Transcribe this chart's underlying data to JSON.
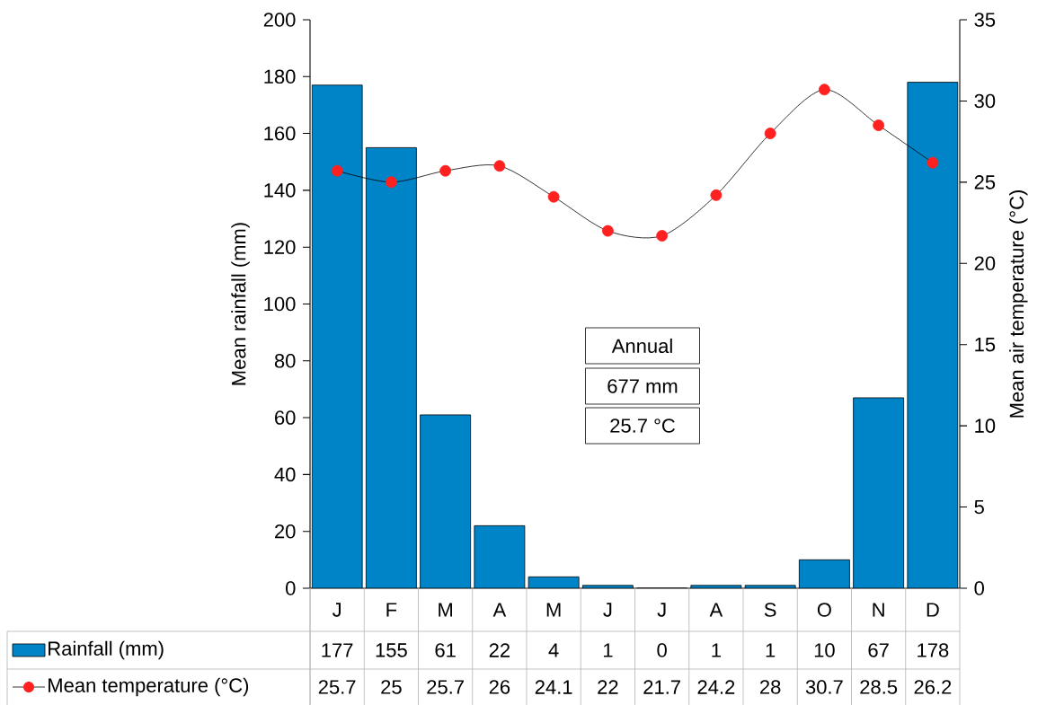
{
  "chart_data": {
    "type": "bar",
    "categories": [
      "J",
      "F",
      "M",
      "A",
      "M",
      "J",
      "J",
      "A",
      "S",
      "O",
      "N",
      "D"
    ],
    "series": [
      {
        "name": "Rainfall (mm)",
        "color": "#0084c8",
        "values": [
          177,
          155,
          61,
          22,
          4,
          1,
          0,
          1,
          1,
          10,
          67,
          178
        ]
      },
      {
        "name": "Mean temperature (°C)",
        "type": "line",
        "axis": "y2",
        "color": "#ff2020",
        "marker": "circle",
        "values": [
          25.7,
          25,
          25.7,
          26,
          24.1,
          22,
          21.7,
          24.2,
          28,
          30.7,
          28.5,
          26.2
        ]
      }
    ],
    "ylabel": "Mean rainfall (mm)",
    "y2label": "Mean air temperature (°C)",
    "ylim": [
      0,
      200
    ],
    "yticks": [
      0,
      20,
      40,
      60,
      80,
      100,
      120,
      140,
      160,
      180,
      200
    ],
    "y2lim": [
      0,
      35
    ],
    "y2ticks": [
      0,
      5,
      10,
      15,
      20,
      25,
      30,
      35
    ],
    "annotations": [
      "Annual",
      "677 mm",
      "25.7 °C"
    ],
    "data_labels": true,
    "legend": "bottom"
  }
}
